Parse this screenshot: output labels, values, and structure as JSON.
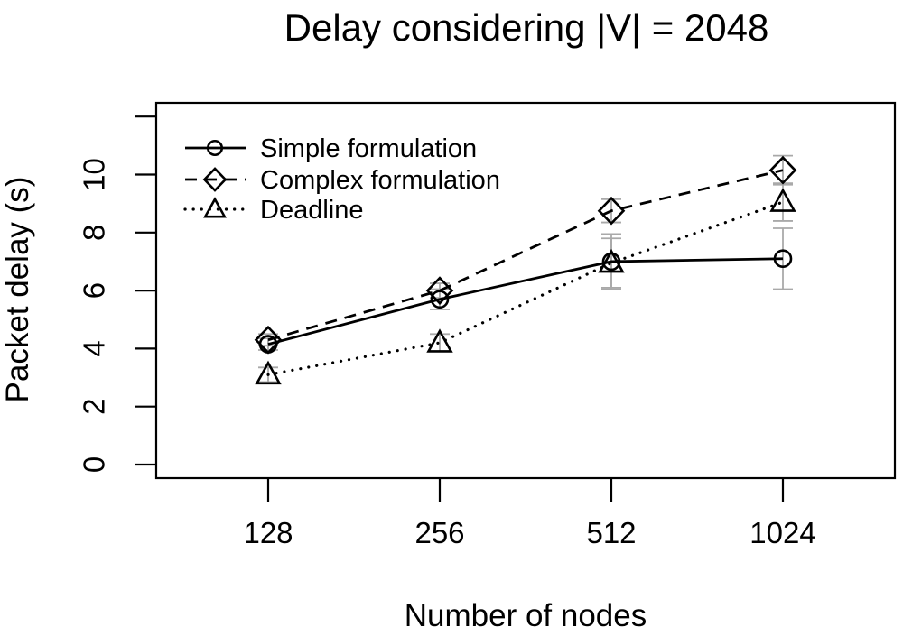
{
  "chart_data": {
    "type": "line",
    "title": "Delay considering |V| = 2048",
    "xlabel": "Number of nodes",
    "ylabel": "Packet delay (s)",
    "categories": [
      "128",
      "256",
      "512",
      "1024"
    ],
    "y_ticks": [
      0,
      2,
      4,
      6,
      8,
      10
    ],
    "y_ticks_unlabeled": [
      12
    ],
    "ylim": [
      0,
      12.5
    ],
    "grid": false,
    "legend_position": "top-left",
    "error_bars": true,
    "series": [
      {
        "name": "Simple formulation",
        "marker": "circle",
        "line_style": "solid",
        "values": [
          4.15,
          5.7,
          7.0,
          7.1
        ],
        "error": [
          0.2,
          0.35,
          0.95,
          1.05
        ]
      },
      {
        "name": "Complex formulation",
        "marker": "diamond",
        "line_style": "dashed",
        "values": [
          4.3,
          6.0,
          8.75,
          10.15
        ],
        "error": [
          0.2,
          0.25,
          0.4,
          0.5
        ]
      },
      {
        "name": "Deadline",
        "marker": "triangle",
        "line_style": "dotted",
        "values": [
          3.1,
          4.2,
          6.95,
          9.05
        ],
        "error": [
          0.25,
          0.3,
          0.85,
          0.65
        ]
      }
    ],
    "colors": {
      "line": "#000000",
      "error_bar": "#a9a9a9",
      "background": "#ffffff"
    }
  }
}
